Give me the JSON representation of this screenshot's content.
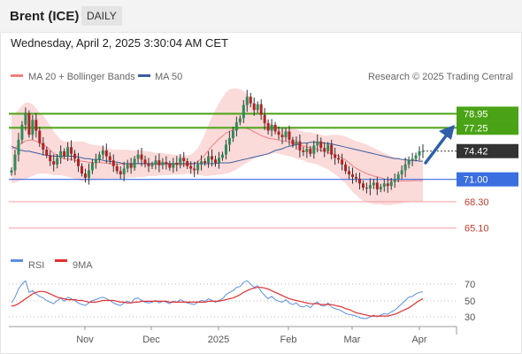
{
  "header": {
    "title": "Brent (ICE)",
    "interval": "DAILY"
  },
  "timestamp": "Wednesday, April 2, 2025 3:30:04 AM CET",
  "legend": {
    "ma20": "MA 20 + Bollinger Bands",
    "ma50": "MA 50",
    "credit": "Research © 2025 Trading Central",
    "rsi": "RSI",
    "rsi_ma": "9MA"
  },
  "colors": {
    "resistance": "#4aa316",
    "support": "#3b6fe0",
    "minor_level": "#f0a0a0",
    "current_price": "#333333",
    "arrow": "#2f5fa8",
    "bollinger": "#fbdada",
    "ma20": "#f08080",
    "ma50": "#3a5f9e",
    "candle_up": "#2e8b57",
    "candle_down": "#b22222",
    "rsi": "#5b8fe0",
    "rsi_ma": "#e03030"
  },
  "chart_data": [
    {
      "type": "candlestick",
      "title": "Brent (ICE)",
      "timeframe": "daily",
      "ylim": [
        62.5,
        82.0
      ],
      "x_ticks": [
        "Nov",
        "Dec",
        "2025",
        "Feb",
        "Mar",
        "Apr"
      ],
      "levels": [
        {
          "value": "78.95",
          "kind": "resistance"
        },
        {
          "value": "77.25",
          "kind": "resistance"
        },
        {
          "value": "74.42",
          "kind": "current_price"
        },
        {
          "value": "71.00",
          "kind": "support"
        },
        {
          "value": "68.30",
          "kind": "support_minor"
        },
        {
          "value": "65.10",
          "kind": "support_minor"
        }
      ],
      "close": [
        72.1,
        74.0,
        75.8,
        77.6,
        79.0,
        76.4,
        78.2,
        76.9,
        75.4,
        74.6,
        73.9,
        73.2,
        72.8,
        73.6,
        74.4,
        73.8,
        74.9,
        74.1,
        73.5,
        72.6,
        71.7,
        71.2,
        72.1,
        73.0,
        73.4,
        74.0,
        74.5,
        73.8,
        73.3,
        72.6,
        72.0,
        71.6,
        72.3,
        72.9,
        72.4,
        73.5,
        74.0,
        73.4,
        72.9,
        72.6,
        72.8,
        73.3,
        72.7,
        73.1,
        72.9,
        72.4,
        73.0,
        72.8,
        73.6,
        73.2,
        72.6,
        72.3,
        72.1,
        72.8,
        73.2,
        73.0,
        73.8,
        73.4,
        73.0,
        73.6,
        74.0,
        75.2,
        76.0,
        76.9,
        77.9,
        78.4,
        80.0,
        81.0,
        80.2,
        79.4,
        80.1,
        78.8,
        77.8,
        76.9,
        77.6,
        76.8,
        76.4,
        76.1,
        76.8,
        75.8,
        75.2,
        75.6,
        74.5,
        74.3,
        74.7,
        74.1,
        75.1,
        75.6,
        74.8,
        74.4,
        75.2,
        74.0,
        73.6,
        73.4,
        72.8,
        72.0,
        71.6,
        71.3,
        71.1,
        70.5,
        70.0,
        69.9,
        70.3,
        70.6,
        69.8,
        70.1,
        70.5,
        70.2,
        70.7,
        71.0,
        71.6,
        72.1,
        72.8,
        73.3,
        73.5,
        73.9,
        74.4,
        74.42
      ],
      "bollinger_upper": [
        79.0,
        79.0,
        79.4,
        79.9,
        80.3,
        80.3,
        80.1,
        79.6,
        79.1,
        78.7,
        78.2,
        77.5,
        76.8,
        76.3,
        75.8,
        75.6,
        75.6,
        75.6,
        75.6,
        75.6,
        75.6,
        75.5,
        75.3,
        75.2,
        75.1,
        75.1,
        75.0,
        74.8,
        74.7,
        74.6,
        74.6,
        74.6,
        74.6,
        74.6,
        74.5,
        74.5,
        74.5,
        74.5,
        74.4,
        74.4,
        74.3,
        74.2,
        74.2,
        74.2,
        74.1,
        74.1,
        74.0,
        74.0,
        73.9,
        73.9,
        73.9,
        74.0,
        74.3,
        74.8,
        75.6,
        76.5,
        77.6,
        78.6,
        79.4,
        80.2,
        80.9,
        81.5,
        81.9,
        82.0,
        82.0,
        81.9,
        81.7,
        81.3,
        80.7,
        80.0,
        79.4,
        78.8,
        78.4,
        78.0,
        77.7,
        77.5,
        77.4,
        77.3,
        77.3,
        77.3,
        77.2,
        77.1,
        76.9,
        76.8,
        76.7,
        76.7,
        76.6,
        76.5,
        76.4,
        76.3,
        76.3,
        76.4,
        76.4,
        76.4,
        76.3,
        76.2,
        76.0,
        75.8,
        75.6,
        75.5,
        75.4,
        75.2,
        75.0,
        74.8,
        74.6,
        74.4,
        74.2,
        74.0,
        73.8,
        73.7,
        73.6,
        73.5,
        73.4,
        73.4,
        73.4,
        73.4,
        73.4,
        73.4
      ],
      "bollinger_lower": [
        70.5,
        70.6,
        70.8,
        70.9,
        71.0,
        71.2,
        71.4,
        71.6,
        71.7,
        71.7,
        71.7,
        71.6,
        71.5,
        71.5,
        71.5,
        71.4,
        71.3,
        71.2,
        71.0,
        70.9,
        70.8,
        70.8,
        70.8,
        70.9,
        70.9,
        71.0,
        71.0,
        71.1,
        71.1,
        71.1,
        71.1,
        71.1,
        71.1,
        71.2,
        71.2,
        71.2,
        71.3,
        71.3,
        71.3,
        71.4,
        71.4,
        71.4,
        71.5,
        71.5,
        71.5,
        71.5,
        71.6,
        71.6,
        71.6,
        71.6,
        71.7,
        71.6,
        71.6,
        71.5,
        71.5,
        71.4,
        71.4,
        71.5,
        71.5,
        71.6,
        71.6,
        71.7,
        71.8,
        72.0,
        72.2,
        72.5,
        72.8,
        73.0,
        73.3,
        73.5,
        73.7,
        73.8,
        73.9,
        74.0,
        74.1,
        74.2,
        74.1,
        74.0,
        73.9,
        73.8,
        73.7,
        73.5,
        73.4,
        73.3,
        73.1,
        73.0,
        72.9,
        72.8,
        72.6,
        72.4,
        72.2,
        71.9,
        71.6,
        71.3,
        70.9,
        70.5,
        70.0,
        69.5,
        69.1,
        68.7,
        68.4,
        68.2,
        68.1,
        68.0,
        68.0,
        68.0,
        67.9,
        67.9,
        67.9,
        68.0,
        68.0,
        68.1,
        68.2,
        68.2,
        68.3,
        68.3,
        68.3,
        68.3
      ],
      "ma50": [
        75.0,
        74.8,
        74.6,
        74.5,
        74.4,
        74.4,
        74.3,
        74.2,
        74.1,
        74.0,
        73.9,
        73.9,
        73.8,
        73.8,
        73.8,
        73.8,
        73.8,
        73.8,
        73.8,
        73.7,
        73.6,
        73.5,
        73.5,
        73.4,
        73.4,
        73.4,
        73.3,
        73.2,
        73.2,
        73.1,
        73.1,
        73.0,
        72.9,
        72.9,
        72.9,
        72.9,
        72.9,
        72.9,
        72.9,
        72.9,
        72.9,
        72.9,
        72.9,
        72.9,
        72.9,
        72.9,
        72.9,
        72.9,
        72.9,
        72.9,
        72.9,
        72.9,
        72.9,
        72.9,
        72.9,
        72.9,
        72.9,
        72.9,
        72.9,
        73.0,
        73.0,
        73.0,
        73.0,
        73.1,
        73.2,
        73.3,
        73.4,
        73.5,
        73.6,
        73.7,
        73.8,
        73.9,
        74.0,
        74.1,
        74.3,
        74.5,
        74.6,
        74.7,
        74.9,
        75.0,
        75.1,
        75.2,
        75.3,
        75.4,
        75.4,
        75.5,
        75.5,
        75.5,
        75.4,
        75.4,
        75.3,
        75.3,
        75.2,
        75.1,
        75.0,
        74.9,
        74.8,
        74.7,
        74.6,
        74.5,
        74.4,
        74.3,
        74.2,
        74.1,
        74.0,
        73.9,
        73.8,
        73.7,
        73.6,
        73.5,
        73.5,
        73.4,
        73.4,
        73.3,
        73.3,
        73.3,
        73.2,
        73.2
      ]
    },
    {
      "type": "line",
      "series": [
        {
          "name": "RSI"
        },
        {
          "name": "9MA"
        }
      ],
      "ylim": [
        24,
        78
      ],
      "y_ticks": [
        "70",
        "50",
        "30"
      ],
      "rsi": [
        47,
        54,
        64,
        70,
        74,
        60,
        62,
        58,
        55,
        53,
        50,
        48,
        46,
        50,
        53,
        49,
        54,
        52,
        50,
        47,
        45,
        44,
        47,
        50,
        51,
        53,
        54,
        52,
        50,
        47,
        45,
        44,
        47,
        49,
        47,
        52,
        53,
        50,
        48,
        47,
        48,
        50,
        47,
        49,
        48,
        46,
        49,
        48,
        51,
        49,
        47,
        46,
        45,
        48,
        50,
        49,
        52,
        50,
        48,
        50,
        52,
        57,
        60,
        62,
        66,
        67,
        72,
        74,
        70,
        66,
        68,
        61,
        56,
        52,
        55,
        51,
        49,
        48,
        51,
        47,
        45,
        47,
        43,
        42,
        44,
        41,
        46,
        48,
        44,
        43,
        47,
        42,
        40,
        39,
        37,
        34,
        33,
        32,
        31,
        29,
        28,
        28,
        30,
        32,
        30,
        32,
        34,
        33,
        36,
        38,
        42,
        46,
        50,
        54,
        55,
        58,
        60,
        60.5
      ],
      "rsi_ma": [
        43,
        44,
        46,
        49,
        52,
        55,
        58,
        60,
        61,
        61,
        60,
        58,
        56,
        54,
        53,
        52,
        51,
        51,
        51,
        50,
        50,
        49,
        48,
        48,
        48,
        49,
        50,
        50,
        50,
        50,
        49,
        48,
        48,
        47,
        47,
        48,
        48,
        49,
        49,
        49,
        49,
        49,
        49,
        49,
        49,
        48,
        48,
        48,
        48,
        48,
        48,
        48,
        48,
        48,
        48,
        48,
        49,
        49,
        49,
        49,
        50,
        51,
        52,
        53,
        55,
        57,
        60,
        62,
        64,
        65,
        66,
        66,
        65,
        64,
        62,
        60,
        58,
        56,
        54,
        52,
        51,
        50,
        49,
        48,
        47,
        46,
        46,
        46,
        45,
        45,
        45,
        45,
        44,
        43,
        42,
        40,
        39,
        37,
        35,
        34,
        33,
        32,
        31,
        31,
        31,
        31,
        31,
        31,
        32,
        33,
        35,
        37,
        39,
        41,
        44,
        47,
        50,
        52
      ]
    }
  ]
}
